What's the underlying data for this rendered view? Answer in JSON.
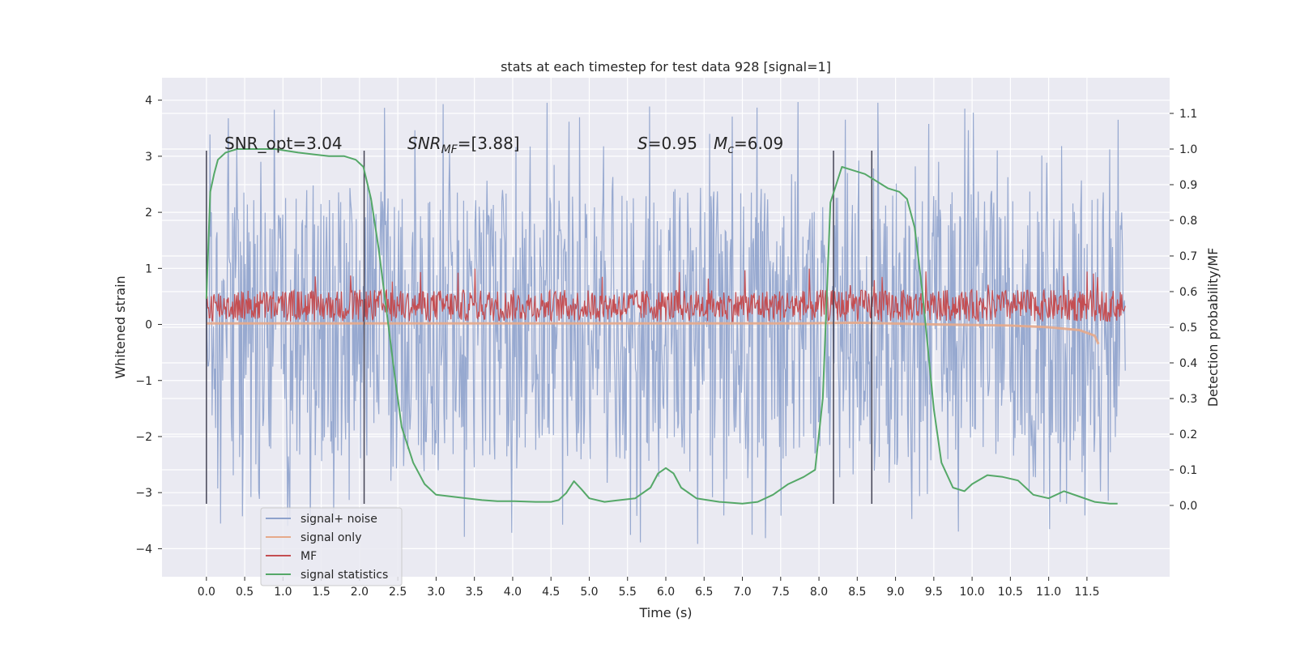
{
  "chart_data": {
    "type": "line",
    "title": "stats at each timestep for test data 928 [signal=1]",
    "xlabel": "Time (s)",
    "ylabel": "Whitened strain",
    "y2label": "Detection probability/MF",
    "xlim": [
      -0.58,
      12.58
    ],
    "ylim": [
      -4.5,
      4.4
    ],
    "y2lim": [
      -0.2,
      1.2
    ],
    "x_ticks": [
      "0.0",
      "0.5",
      "1.0",
      "1.5",
      "2.0",
      "2.5",
      "3.0",
      "3.5",
      "4.0",
      "4.5",
      "5.0",
      "5.5",
      "6.0",
      "6.5",
      "7.0",
      "7.5",
      "8.0",
      "8.5",
      "9.0",
      "9.5",
      "10.0",
      "10.5",
      "11.0",
      "11.5"
    ],
    "y_ticks": [
      "−4",
      "−3",
      "−2",
      "−1",
      "0",
      "1",
      "2",
      "3",
      "4"
    ],
    "y2_ticks": [
      "0.0",
      "0.1",
      "0.2",
      "0.3",
      "0.4",
      "0.5",
      "0.6",
      "0.7",
      "0.8",
      "0.9",
      "1.0",
      "1.1"
    ],
    "grid": true,
    "legend_position": "lower-left",
    "annotations": {
      "snr_opt": "SNR_opt=3.04",
      "snr_mf_main": "SNR",
      "snr_mf_sub": "MF",
      "snr_mf_tail": "=[3.88]",
      "s_main": "S",
      "s_tail": "=0.95",
      "mc_main": "M",
      "mc_sub": "c",
      "mc_tail": "=6.09"
    },
    "vertical_markers_s": [
      0.0,
      2.06,
      8.19,
      8.69
    ],
    "series": [
      {
        "name": "signal+ noise",
        "color": "#8ea2cc",
        "axis": "left",
        "x_range": [
          0.0,
          12.0
        ],
        "envelope_upper": 2.4,
        "envelope_lower": -2.4,
        "max": 3.97,
        "min": -4.0
      },
      {
        "name": "signal only",
        "color": "#e6a98a",
        "axis": "left",
        "x": [
          0.0,
          7.8,
          8.5,
          9.5,
          10.5,
          11.0,
          11.4,
          11.6,
          11.65
        ],
        "y": [
          0.02,
          0.02,
          0.03,
          0.0,
          -0.02,
          -0.05,
          -0.1,
          -0.2,
          -0.35
        ]
      },
      {
        "name": "MF",
        "color": "#c44e52",
        "axis": "left",
        "x_range": [
          0.0,
          12.0
        ],
        "envelope_upper": 0.62,
        "envelope_lower": 0.05,
        "max": 1.0
      },
      {
        "name": "signal statistics",
        "color": "#55a868",
        "axis": "right",
        "x": [
          0.0,
          0.05,
          0.1,
          0.15,
          0.25,
          0.4,
          0.6,
          0.9,
          1.2,
          1.4,
          1.6,
          1.8,
          1.95,
          2.05,
          2.15,
          2.25,
          2.35,
          2.45,
          2.55,
          2.7,
          2.85,
          3.0,
          3.2,
          3.4,
          3.6,
          3.8,
          4.0,
          4.3,
          4.5,
          4.6,
          4.7,
          4.8,
          4.9,
          5.0,
          5.2,
          5.4,
          5.6,
          5.8,
          5.9,
          6.0,
          6.1,
          6.2,
          6.4,
          6.7,
          7.0,
          7.2,
          7.4,
          7.6,
          7.8,
          7.95,
          8.05,
          8.15,
          8.3,
          8.45,
          8.6,
          8.75,
          8.9,
          9.05,
          9.15,
          9.25,
          9.35,
          9.5,
          9.6,
          9.75,
          9.9,
          10.0,
          10.2,
          10.4,
          10.6,
          10.8,
          11.0,
          11.2,
          11.4,
          11.6,
          11.8,
          11.9
        ],
        "y": [
          0.58,
          0.88,
          0.93,
          0.97,
          0.99,
          1.0,
          1.0,
          1.0,
          0.99,
          0.985,
          0.98,
          0.98,
          0.97,
          0.95,
          0.86,
          0.72,
          0.55,
          0.38,
          0.22,
          0.12,
          0.06,
          0.03,
          0.025,
          0.02,
          0.015,
          0.012,
          0.012,
          0.01,
          0.01,
          0.015,
          0.035,
          0.068,
          0.045,
          0.02,
          0.01,
          0.015,
          0.02,
          0.05,
          0.09,
          0.105,
          0.09,
          0.05,
          0.02,
          0.01,
          0.005,
          0.01,
          0.03,
          0.06,
          0.08,
          0.1,
          0.3,
          0.85,
          0.95,
          0.94,
          0.93,
          0.91,
          0.89,
          0.88,
          0.86,
          0.78,
          0.6,
          0.27,
          0.12,
          0.05,
          0.04,
          0.06,
          0.085,
          0.08,
          0.07,
          0.03,
          0.02,
          0.04,
          0.025,
          0.01,
          0.005,
          0.005
        ]
      }
    ]
  }
}
